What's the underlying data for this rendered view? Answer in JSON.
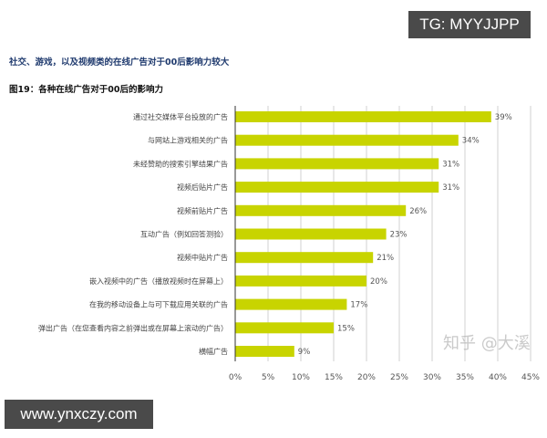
{
  "watermarks": {
    "tg": "TG: MYYJJPP",
    "site": "www.ynxczy.com",
    "zhihu": "知乎 @大溪"
  },
  "headline": "社交、游戏，以及视频类的在线广告对于00后影响力较大",
  "chart_data": {
    "type": "bar",
    "orientation": "horizontal",
    "title": "图19：各种在线广告对于00后的影响力",
    "categories": [
      "通过社交媒体平台投放的广告",
      "与网站上游戏相关的广告",
      "未经赞助的搜索引擎结果广告",
      "视频后贴片广告",
      "视频前贴片广告",
      "互动广告（例如回答测验）",
      "视频中贴片广告",
      "嵌入视频中的广告（播放视频时在屏幕上）",
      "在我的移动设备上与可下载应用关联的广告",
      "弹出广告（在您查看内容之前弹出或在屏幕上滚动的广告）",
      "横幅广告"
    ],
    "values": [
      39,
      34,
      31,
      31,
      26,
      23,
      21,
      20,
      17,
      15,
      9
    ],
    "data_labels": [
      "39%",
      "34%",
      "31%",
      "31%",
      "26%",
      "23%",
      "21%",
      "20%",
      "17%",
      "15%",
      "9%"
    ],
    "xlim": [
      0,
      45
    ],
    "xticks": [
      "0%",
      "5%",
      "10%",
      "15%",
      "20%",
      "25%",
      "30%",
      "35%",
      "40%",
      "45%"
    ],
    "grid": "vertical",
    "bar_color": "#c8d400"
  }
}
